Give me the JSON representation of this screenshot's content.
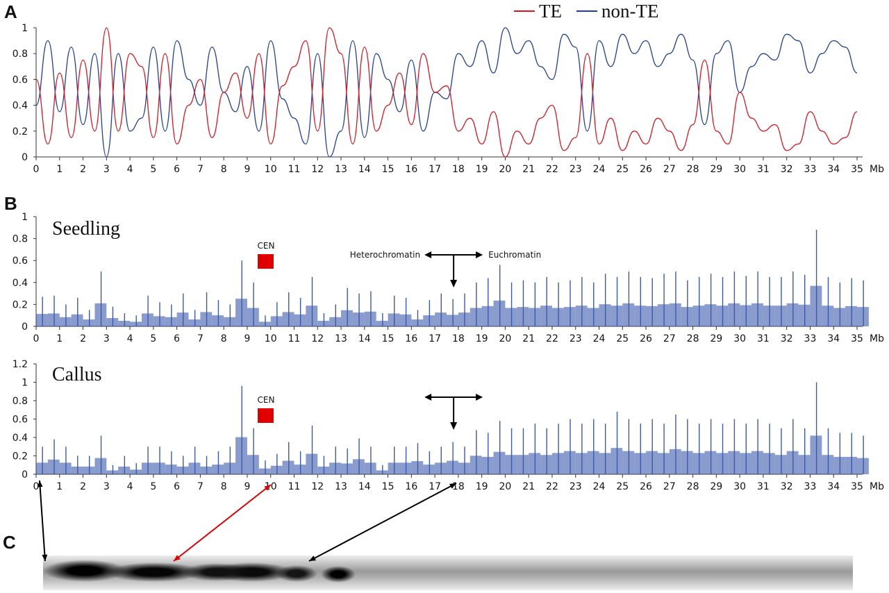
{
  "panel_labels": {
    "a": "A",
    "b": "B",
    "c": "C"
  },
  "colors": {
    "te": "#e0121b",
    "non_te": "#1f3d9e",
    "bars": "#3a5aab",
    "cen": "#e00000"
  },
  "chart_data": [
    {
      "id": "A",
      "type": "line",
      "xlabel": "Mb",
      "ylim": [
        0,
        1
      ],
      "yticks": [
        "0",
        "0.2",
        "0.4",
        "0.6",
        "0.8",
        "1"
      ],
      "xticks": [
        "0",
        "1",
        "2",
        "3",
        "4",
        "5",
        "6",
        "7",
        "8",
        "9",
        "10",
        "11",
        "12",
        "13",
        "14",
        "15",
        "16",
        "17",
        "18",
        "19",
        "20",
        "21",
        "22",
        "23",
        "24",
        "25",
        "26",
        "27",
        "28",
        "29",
        "30",
        "31",
        "32",
        "33",
        "34",
        "35"
      ],
      "x_step_mb": 0.5,
      "legend": {
        "position": "top-right",
        "entries": [
          "TE",
          "non-TE"
        ]
      },
      "series": [
        {
          "name": "TE",
          "values": [
            0.6,
            0.1,
            0.65,
            0.15,
            0.75,
            0.2,
            1.0,
            0.2,
            0.8,
            0.7,
            0.15,
            0.8,
            0.1,
            0.4,
            0.6,
            0.15,
            0.5,
            0.65,
            0.3,
            0.8,
            0.1,
            0.55,
            0.7,
            0.9,
            0.2,
            1.0,
            0.8,
            0.1,
            0.85,
            0.2,
            0.4,
            0.65,
            0.25,
            0.8,
            0.5,
            0.55,
            0.2,
            0.3,
            0.1,
            0.35,
            0.0,
            0.2,
            0.1,
            0.3,
            0.4,
            0.05,
            0.15,
            0.8,
            0.1,
            0.3,
            0.05,
            0.2,
            0.1,
            0.3,
            0.2,
            0.05,
            0.25,
            0.75,
            0.2,
            0.1,
            0.5,
            0.3,
            0.2,
            0.25,
            0.05,
            0.1,
            0.35,
            0.2,
            0.1,
            0.15,
            0.35
          ]
        },
        {
          "name": "non-TE",
          "complement_of": "TE"
        }
      ]
    },
    {
      "id": "B-seedling",
      "type": "bar",
      "title": "Seedling",
      "xlabel": "Mb",
      "ylim": [
        0,
        1
      ],
      "yticks": [
        "0",
        "0.2",
        "0.4",
        "0.6",
        "0.8",
        "1"
      ],
      "x_step_mb": 0.5,
      "values": [
        0.27,
        0.28,
        0.2,
        0.26,
        0.15,
        0.5,
        0.18,
        0.12,
        0.1,
        0.28,
        0.22,
        0.2,
        0.3,
        0.15,
        0.31,
        0.24,
        0.2,
        0.6,
        0.4,
        0.1,
        0.22,
        0.31,
        0.26,
        0.45,
        0.12,
        0.2,
        0.35,
        0.3,
        0.32,
        0.12,
        0.28,
        0.26,
        0.15,
        0.24,
        0.3,
        0.25,
        0.3,
        0.4,
        0.44,
        0.56,
        0.4,
        0.42,
        0.4,
        0.45,
        0.4,
        0.42,
        0.45,
        0.4,
        0.48,
        0.45,
        0.5,
        0.45,
        0.44,
        0.48,
        0.5,
        0.42,
        0.45,
        0.48,
        0.45,
        0.5,
        0.46,
        0.5,
        0.45,
        0.45,
        0.5,
        0.47,
        0.88,
        0.45,
        0.4,
        0.44,
        0.42
      ],
      "annotations": {
        "cen": "CEN",
        "left": "Heterochromatin",
        "right": "Euchromatin",
        "boundary_mb": 17.8,
        "cen_mb": 9.8
      }
    },
    {
      "id": "B-callus",
      "type": "bar",
      "title": "Callus",
      "xlabel": "Mb",
      "ylim": [
        0,
        1.2
      ],
      "yticks": [
        "0",
        "0.2",
        "0.4",
        "0.6",
        "0.8",
        "1",
        "1.2"
      ],
      "x_step_mb": 0.5,
      "values": [
        0.3,
        0.38,
        0.3,
        0.2,
        0.2,
        0.42,
        0.1,
        0.2,
        0.12,
        0.3,
        0.3,
        0.25,
        0.2,
        0.3,
        0.2,
        0.25,
        0.3,
        0.96,
        0.5,
        0.15,
        0.22,
        0.35,
        0.25,
        0.53,
        0.2,
        0.3,
        0.28,
        0.39,
        0.3,
        0.1,
        0.3,
        0.3,
        0.34,
        0.25,
        0.3,
        0.35,
        0.3,
        0.48,
        0.45,
        0.58,
        0.5,
        0.5,
        0.55,
        0.5,
        0.55,
        0.6,
        0.55,
        0.6,
        0.55,
        0.68,
        0.6,
        0.55,
        0.6,
        0.55,
        0.65,
        0.6,
        0.55,
        0.6,
        0.55,
        0.6,
        0.55,
        0.6,
        0.55,
        0.5,
        0.6,
        0.5,
        1.0,
        0.5,
        0.45,
        0.45,
        0.42
      ],
      "annotations": {
        "cen": "CEN",
        "boundary_mb": 17.8,
        "cen_mb": 9.8
      }
    }
  ]
}
